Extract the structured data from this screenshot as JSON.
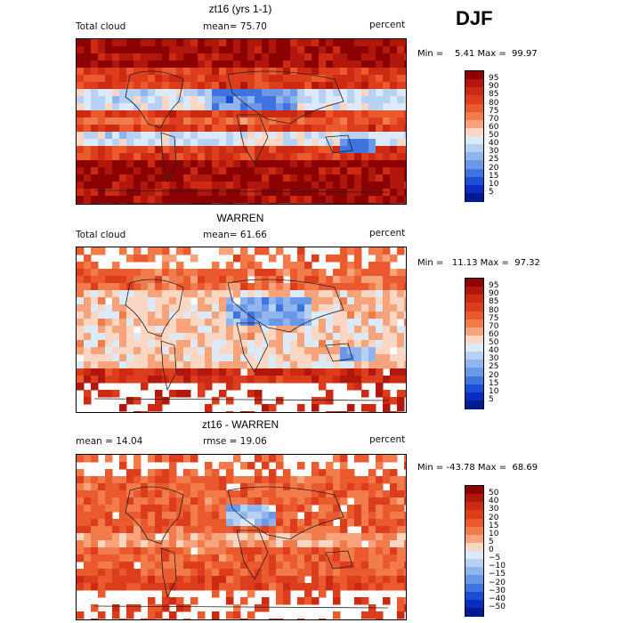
{
  "season": "DJF",
  "panels": [
    {
      "title": "zt16 (yrs 1-1)",
      "left_label": "Total cloud",
      "center_label": "mean=  75.70",
      "right_label": "percent",
      "minmax": "Min =    5.41 Max =  99.97",
      "colorbar_ticks": [
        "95",
        "90",
        "85",
        "80",
        "75",
        "70",
        "60",
        "50",
        "40",
        "30",
        "25",
        "20",
        "15",
        "10",
        "5"
      ],
      "colorbar_colors": [
        "#8b0000",
        "#b2170d",
        "#cc2a12",
        "#dc3d1c",
        "#ea5a2e",
        "#f27b4c",
        "#f7a37c",
        "#fbd7c3",
        "#dce9f8",
        "#b7d1f3",
        "#90b5ee",
        "#6a98e8",
        "#3f74e0",
        "#1a4ed4",
        "#0a2cc0",
        "#001a8f"
      ],
      "map_mode": "model"
    },
    {
      "title": "WARREN",
      "left_label": "Total cloud",
      "center_label": "mean=  61.66",
      "right_label": "percent",
      "minmax": "Min =   11.13 Max =  97.32",
      "colorbar_ticks": [
        "95",
        "90",
        "85",
        "80",
        "75",
        "70",
        "60",
        "50",
        "40",
        "30",
        "25",
        "20",
        "15",
        "10",
        "5"
      ],
      "colorbar_colors": [
        "#8b0000",
        "#b2170d",
        "#cc2a12",
        "#dc3d1c",
        "#ea5a2e",
        "#f27b4c",
        "#f7a37c",
        "#fbd7c3",
        "#dce9f8",
        "#b7d1f3",
        "#90b5ee",
        "#6a98e8",
        "#3f74e0",
        "#1a4ed4",
        "#0a2cc0",
        "#001a8f"
      ],
      "map_mode": "obs"
    },
    {
      "title": "zt16 - WARREN",
      "left_label": "mean =  14.04",
      "center_label": "rmse =  19.06",
      "right_label": "percent",
      "minmax": "Min = -43.78 Max =  68.69",
      "colorbar_ticks": [
        "50",
        "40",
        "30",
        "20",
        "15",
        "10",
        "5",
        "0",
        "−5",
        "−10",
        "−15",
        "−20",
        "−30",
        "−40",
        "−50"
      ],
      "colorbar_colors": [
        "#8b0000",
        "#b2170d",
        "#cc2a12",
        "#dc3d1c",
        "#ea5a2e",
        "#f27b4c",
        "#f7a37c",
        "#fbd7c3",
        "#dce9f8",
        "#b7d1f3",
        "#90b5ee",
        "#6a98e8",
        "#3f74e0",
        "#1a4ed4",
        "#0a2cc0",
        "#001a8f"
      ],
      "map_mode": "diff"
    }
  ],
  "chart_data": [
    {
      "type": "heatmap",
      "title": "zt16 (yrs 1-1)",
      "variable": "Total cloud",
      "units": "percent",
      "mean": 75.7,
      "min": 5.41,
      "max": 99.97,
      "levels": [
        5,
        10,
        15,
        20,
        25,
        30,
        40,
        50,
        60,
        70,
        75,
        80,
        85,
        90,
        95
      ]
    },
    {
      "type": "heatmap",
      "title": "WARREN",
      "variable": "Total cloud",
      "units": "percent",
      "mean": 61.66,
      "min": 11.13,
      "max": 97.32,
      "levels": [
        5,
        10,
        15,
        20,
        25,
        30,
        40,
        50,
        60,
        70,
        75,
        80,
        85,
        90,
        95
      ]
    },
    {
      "type": "heatmap",
      "title": "zt16 - WARREN",
      "units": "percent",
      "mean": 14.04,
      "rmse": 19.06,
      "min": -43.78,
      "max": 68.69,
      "levels": [
        -50,
        -40,
        -30,
        -20,
        -15,
        -10,
        -5,
        0,
        5,
        10,
        15,
        20,
        30,
        40,
        50
      ]
    }
  ]
}
